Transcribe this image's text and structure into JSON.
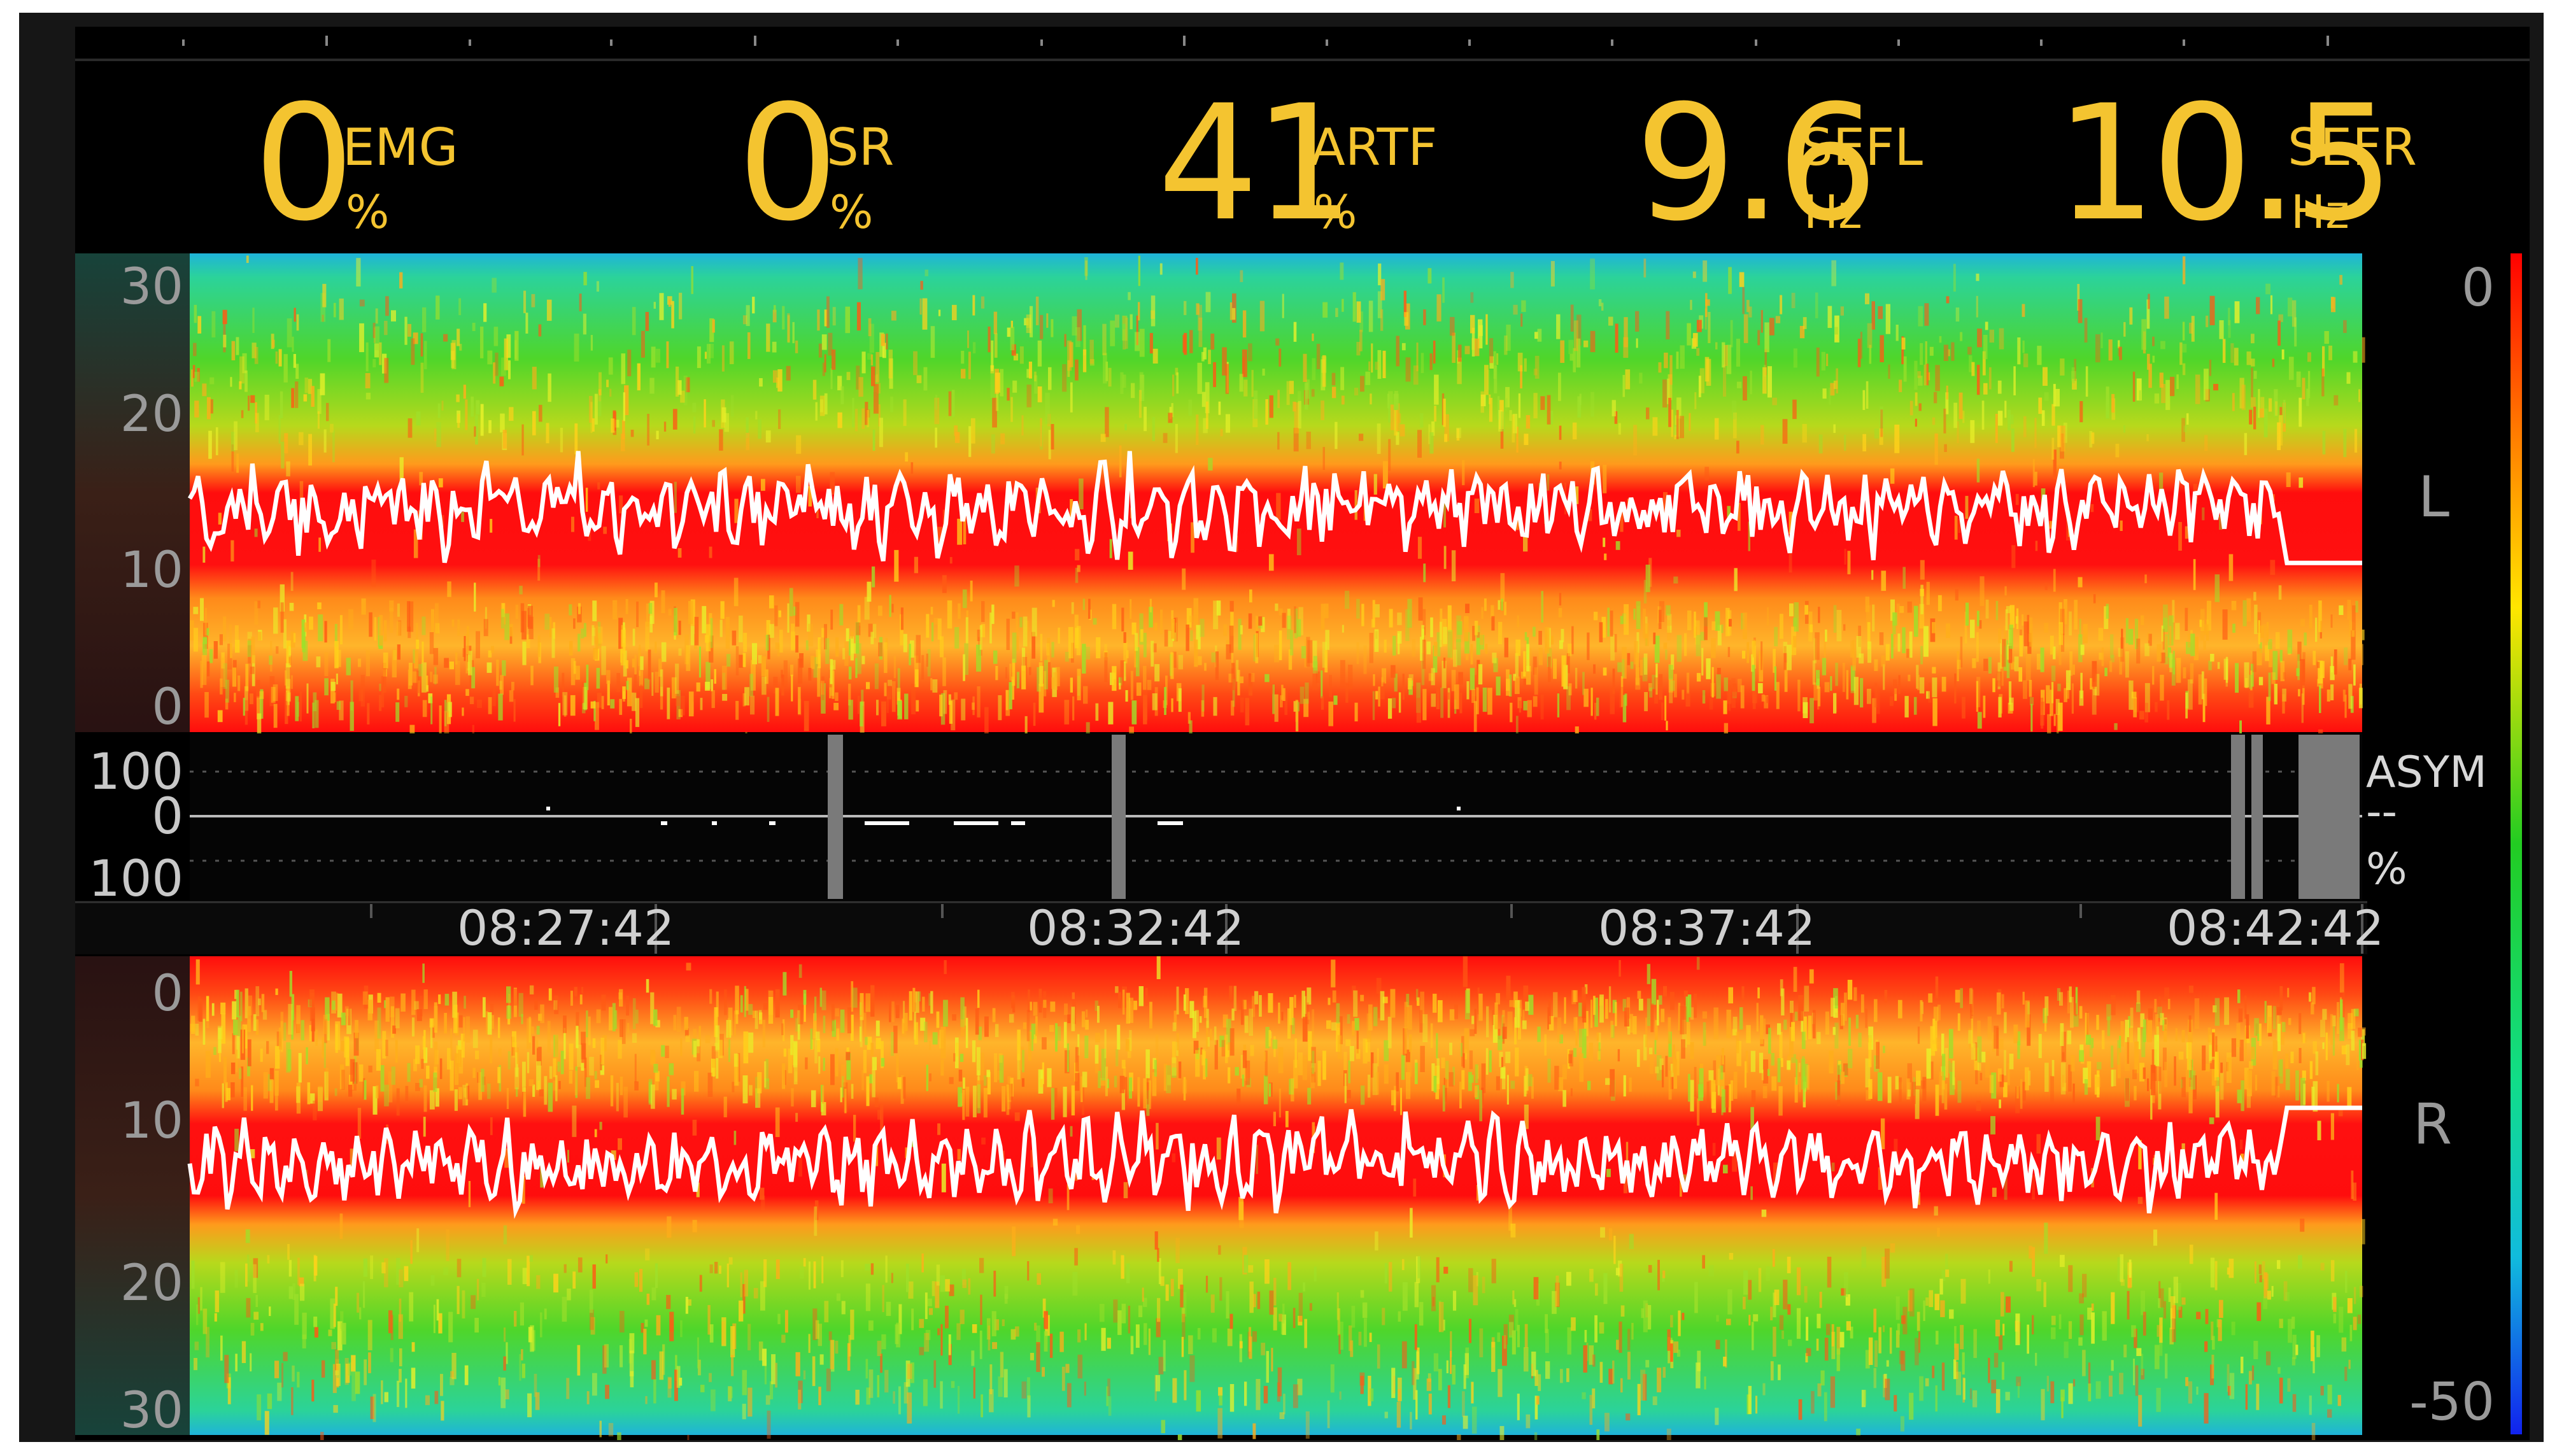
{
  "metrics": [
    {
      "value": "0",
      "label": "EMG",
      "unit": "%"
    },
    {
      "value": "0",
      "label": "SR",
      "unit": "%"
    },
    {
      "value": "41",
      "label": "ARTF",
      "unit": "%"
    },
    {
      "value": "9.6",
      "label": "SEFL",
      "unit": "Hz"
    },
    {
      "value": "10.5",
      "label": "SEFR",
      "unit": "Hz"
    }
  ],
  "left_channel": {
    "label": "L",
    "y_ticks": [
      "30",
      "20",
      "10",
      "0"
    ]
  },
  "right_channel": {
    "label": "R",
    "y_ticks": [
      "0",
      "10",
      "20",
      "30"
    ]
  },
  "asymmetry": {
    "label": "ASYM",
    "value": "--",
    "unit": "%",
    "ticks": [
      "100",
      "0",
      "100"
    ]
  },
  "time_axis": {
    "ticks": [
      "08:27:42",
      "08:32:42",
      "08:37:42",
      "08:42:42"
    ]
  },
  "colorbar": {
    "max": "0",
    "min": "-50"
  },
  "colors": {
    "digits": "#f4c430",
    "trend": "#ffffff",
    "background": "#000000"
  },
  "chart_data": {
    "type": "heatmap",
    "description_of_axes": "density spectral array; vertical axis frequency (Hz), horizontal axis time",
    "left": {
      "ylim": [
        0,
        30
      ],
      "sef_hz": 9.6
    },
    "right": {
      "ylim": [
        0,
        30
      ],
      "sef_hz": 10.5
    },
    "colorbar_range": [
      -50,
      0
    ],
    "asym_ylim": [
      -100,
      100
    ],
    "x": [
      "08:27:42",
      "08:32:42",
      "08:37:42",
      "08:42:42"
    ]
  }
}
